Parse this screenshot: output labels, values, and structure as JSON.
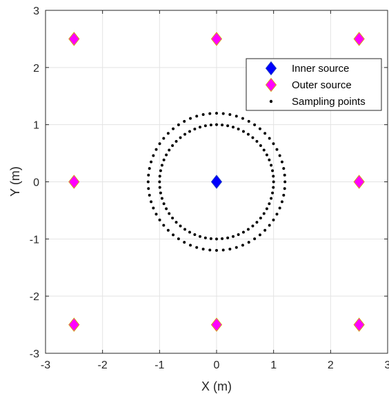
{
  "chart_data": {
    "type": "scatter",
    "title": "",
    "xlabel": "X (m)",
    "ylabel": "Y (m)",
    "xlim": [
      -3,
      3
    ],
    "ylim": [
      -3,
      3
    ],
    "xticks": [
      -3,
      -2,
      -1,
      0,
      1,
      2,
      3
    ],
    "yticks": [
      -3,
      -2,
      -1,
      0,
      1,
      2,
      3
    ],
    "xtick_labels": [
      "-3",
      "-2",
      "-1",
      "0",
      "1",
      "2",
      "3"
    ],
    "ytick_labels": [
      "-3",
      "-2",
      "-1",
      "0",
      "1",
      "2",
      "3"
    ],
    "grid": true,
    "legend_position": "top-right",
    "series": [
      {
        "name": "Inner source",
        "marker": "diamond",
        "color": "#0000ff",
        "edge_color": "#1f3fbf",
        "points": [
          [
            0,
            0
          ]
        ]
      },
      {
        "name": "Outer source",
        "marker": "diamond",
        "color": "#ff00ff",
        "edge_color": "#d4a017",
        "points": [
          [
            -2.5,
            2.5
          ],
          [
            0,
            2.5
          ],
          [
            2.5,
            2.5
          ],
          [
            -2.5,
            0
          ],
          [
            2.5,
            0
          ],
          [
            -2.5,
            -2.5
          ],
          [
            0,
            -2.5
          ],
          [
            2.5,
            -2.5
          ]
        ]
      },
      {
        "name": "Sampling points",
        "marker": "dot",
        "color": "#000000",
        "circles": [
          {
            "radius": 1.0,
            "count": 64
          },
          {
            "radius": 1.2,
            "count": 64
          }
        ]
      }
    ]
  }
}
